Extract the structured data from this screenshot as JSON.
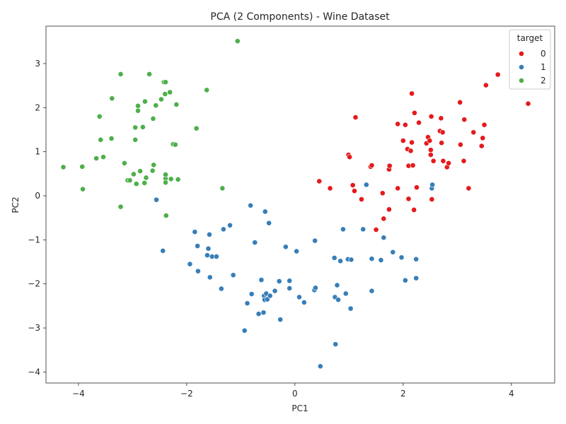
{
  "chart_data": {
    "type": "scatter",
    "title": "PCA (2 Components) - Wine Dataset",
    "xlabel": "PC1",
    "ylabel": "PC2",
    "xlim": [
      -4.6,
      4.8
    ],
    "ylim": [
      -4.25,
      3.85
    ],
    "xticks": [
      -4,
      -2,
      0,
      2,
      4
    ],
    "yticks": [
      -4,
      -3,
      -2,
      -1,
      0,
      1,
      2,
      3
    ],
    "grid": false,
    "legend": {
      "title": "target",
      "placement": "top-right",
      "entries": [
        "0",
        "1",
        "2"
      ]
    },
    "series": [
      {
        "name": "0",
        "color": "#e41a1c",
        "points": [
          [
            0.45,
            0.33
          ],
          [
            0.65,
            0.17
          ],
          [
            0.99,
            0.93
          ],
          [
            1.01,
            0.88
          ],
          [
            1.07,
            0.24
          ],
          [
            1.1,
            0.11
          ],
          [
            1.12,
            1.78
          ],
          [
            1.23,
            -0.08
          ],
          [
            1.4,
            0.66
          ],
          [
            1.42,
            0.69
          ],
          [
            1.5,
            -0.77
          ],
          [
            1.62,
            0.06
          ],
          [
            1.64,
            -0.52
          ],
          [
            1.74,
            0.6
          ],
          [
            1.75,
            0.68
          ],
          [
            1.74,
            -0.31
          ],
          [
            1.9,
            1.63
          ],
          [
            1.9,
            0.17
          ],
          [
            2.0,
            1.25
          ],
          [
            2.04,
            1.61
          ],
          [
            2.08,
            1.06
          ],
          [
            2.1,
            -0.07
          ],
          [
            2.1,
            0.68
          ],
          [
            2.14,
            1.02
          ],
          [
            2.16,
            2.32
          ],
          [
            2.16,
            1.21
          ],
          [
            2.18,
            0.69
          ],
          [
            2.2,
            -0.32
          ],
          [
            2.21,
            1.88
          ],
          [
            2.25,
            0.19
          ],
          [
            2.29,
            1.66
          ],
          [
            2.43,
            1.19
          ],
          [
            2.46,
            1.33
          ],
          [
            2.49,
            1.25
          ],
          [
            2.51,
            1.04
          ],
          [
            2.51,
            0.93
          ],
          [
            2.52,
            1.8
          ],
          [
            2.53,
            -0.08
          ],
          [
            2.56,
            0.79
          ],
          [
            2.68,
            1.47
          ],
          [
            2.7,
            1.76
          ],
          [
            2.71,
            1.2
          ],
          [
            2.73,
            1.44
          ],
          [
            2.74,
            0.79
          ],
          [
            2.81,
            0.65
          ],
          [
            2.84,
            0.74
          ],
          [
            3.05,
            2.12
          ],
          [
            3.06,
            1.16
          ],
          [
            3.12,
            0.79
          ],
          [
            3.13,
            1.73
          ],
          [
            3.21,
            0.17
          ],
          [
            3.3,
            1.44
          ],
          [
            3.45,
            1.13
          ],
          [
            3.47,
            1.31
          ],
          [
            3.5,
            1.61
          ],
          [
            3.53,
            2.51
          ],
          [
            3.75,
            2.75
          ],
          [
            4.31,
            2.09
          ]
        ]
      },
      {
        "name": "1",
        "color": "#377eb8",
        "points": [
          [
            -2.56,
            -0.09
          ],
          [
            -2.44,
            -1.25
          ],
          [
            -1.94,
            -1.55
          ],
          [
            -1.85,
            -0.82
          ],
          [
            -1.8,
            -1.14
          ],
          [
            -1.79,
            -1.71
          ],
          [
            -1.62,
            -1.35
          ],
          [
            -1.6,
            -1.2
          ],
          [
            -1.58,
            -0.88
          ],
          [
            -1.57,
            -1.85
          ],
          [
            -1.53,
            -1.38
          ],
          [
            -1.45,
            -1.38
          ],
          [
            -1.36,
            -2.11
          ],
          [
            -1.32,
            -0.76
          ],
          [
            -1.2,
            -0.67
          ],
          [
            -1.14,
            -1.8
          ],
          [
            -0.93,
            -3.06
          ],
          [
            -0.88,
            -2.44
          ],
          [
            -0.82,
            -0.22
          ],
          [
            -0.8,
            -2.23
          ],
          [
            -0.74,
            -1.06
          ],
          [
            -0.67,
            -2.68
          ],
          [
            -0.62,
            -1.91
          ],
          [
            -0.58,
            -2.65
          ],
          [
            -0.57,
            -2.27
          ],
          [
            -0.56,
            -2.36
          ],
          [
            -0.55,
            -0.36
          ],
          [
            -0.53,
            -2.22
          ],
          [
            -0.51,
            -2.35
          ],
          [
            -0.48,
            -0.62
          ],
          [
            -0.46,
            -2.27
          ],
          [
            -0.37,
            -2.16
          ],
          [
            -0.29,
            -1.94
          ],
          [
            -0.27,
            -2.81
          ],
          [
            -0.17,
            -1.16
          ],
          [
            -0.1,
            -1.93
          ],
          [
            -0.1,
            -2.1
          ],
          [
            0.03,
            -1.26
          ],
          [
            0.08,
            -2.3
          ],
          [
            0.17,
            -2.42
          ],
          [
            0.36,
            -2.14
          ],
          [
            0.37,
            -1.02
          ],
          [
            0.38,
            -2.09
          ],
          [
            0.47,
            -3.87
          ],
          [
            0.73,
            -1.41
          ],
          [
            0.74,
            -2.3
          ],
          [
            0.75,
            -3.37
          ],
          [
            0.78,
            -2.03
          ],
          [
            0.8,
            -2.36
          ],
          [
            0.84,
            -1.48
          ],
          [
            0.89,
            -0.76
          ],
          [
            0.94,
            -2.22
          ],
          [
            0.98,
            -1.44
          ],
          [
            1.03,
            -2.56
          ],
          [
            1.04,
            -1.45
          ],
          [
            1.32,
            0.25
          ],
          [
            1.26,
            -0.76
          ],
          [
            1.42,
            -1.43
          ],
          [
            1.42,
            -2.16
          ],
          [
            1.59,
            -1.46
          ],
          [
            1.64,
            -0.95
          ],
          [
            1.81,
            -1.28
          ],
          [
            1.97,
            -1.4
          ],
          [
            2.04,
            -1.92
          ],
          [
            2.24,
            -1.87
          ],
          [
            2.24,
            -1.44
          ],
          [
            2.53,
            0.17
          ],
          [
            2.54,
            0.25
          ]
        ]
      },
      {
        "name": "2",
        "color": "#4daf4a",
        "points": [
          [
            -4.28,
            0.65
          ],
          [
            -3.93,
            0.66
          ],
          [
            -3.92,
            0.15
          ],
          [
            -3.67,
            0.85
          ],
          [
            -3.61,
            1.8
          ],
          [
            -3.59,
            1.27
          ],
          [
            -3.54,
            0.88
          ],
          [
            -3.38,
            2.21
          ],
          [
            -3.39,
            1.3
          ],
          [
            -3.22,
            2.76
          ],
          [
            -3.22,
            -0.25
          ],
          [
            -3.15,
            0.74
          ],
          [
            -3.09,
            0.35
          ],
          [
            -3.05,
            0.35
          ],
          [
            -2.98,
            0.49
          ],
          [
            -2.95,
            1.55
          ],
          [
            -2.95,
            1.27
          ],
          [
            -2.93,
            0.27
          ],
          [
            -2.9,
            2.04
          ],
          [
            -2.9,
            1.93
          ],
          [
            -2.86,
            0.56
          ],
          [
            -2.81,
            1.56
          ],
          [
            -2.77,
            2.14
          ],
          [
            -2.78,
            0.29
          ],
          [
            -2.75,
            0.41
          ],
          [
            -2.69,
            2.76
          ],
          [
            -2.63,
            0.57
          ],
          [
            -2.62,
            1.75
          ],
          [
            -2.61,
            0.7
          ],
          [
            -2.57,
            2.05
          ],
          [
            -2.47,
            2.19
          ],
          [
            -2.42,
            2.58
          ],
          [
            -2.39,
            2.58
          ],
          [
            -2.4,
            2.31
          ],
          [
            -2.39,
            0.39
          ],
          [
            -2.39,
            0.3
          ],
          [
            -2.39,
            0.48
          ],
          [
            -2.38,
            -0.45
          ],
          [
            -2.31,
            2.35
          ],
          [
            -2.29,
            0.38
          ],
          [
            -2.25,
            1.17
          ],
          [
            -2.21,
            1.16
          ],
          [
            -2.19,
            2.07
          ],
          [
            -2.16,
            0.37
          ],
          [
            -1.82,
            1.53
          ],
          [
            -1.63,
            2.4
          ],
          [
            -1.34,
            0.17
          ],
          [
            -1.06,
            3.51
          ]
        ]
      }
    ]
  }
}
